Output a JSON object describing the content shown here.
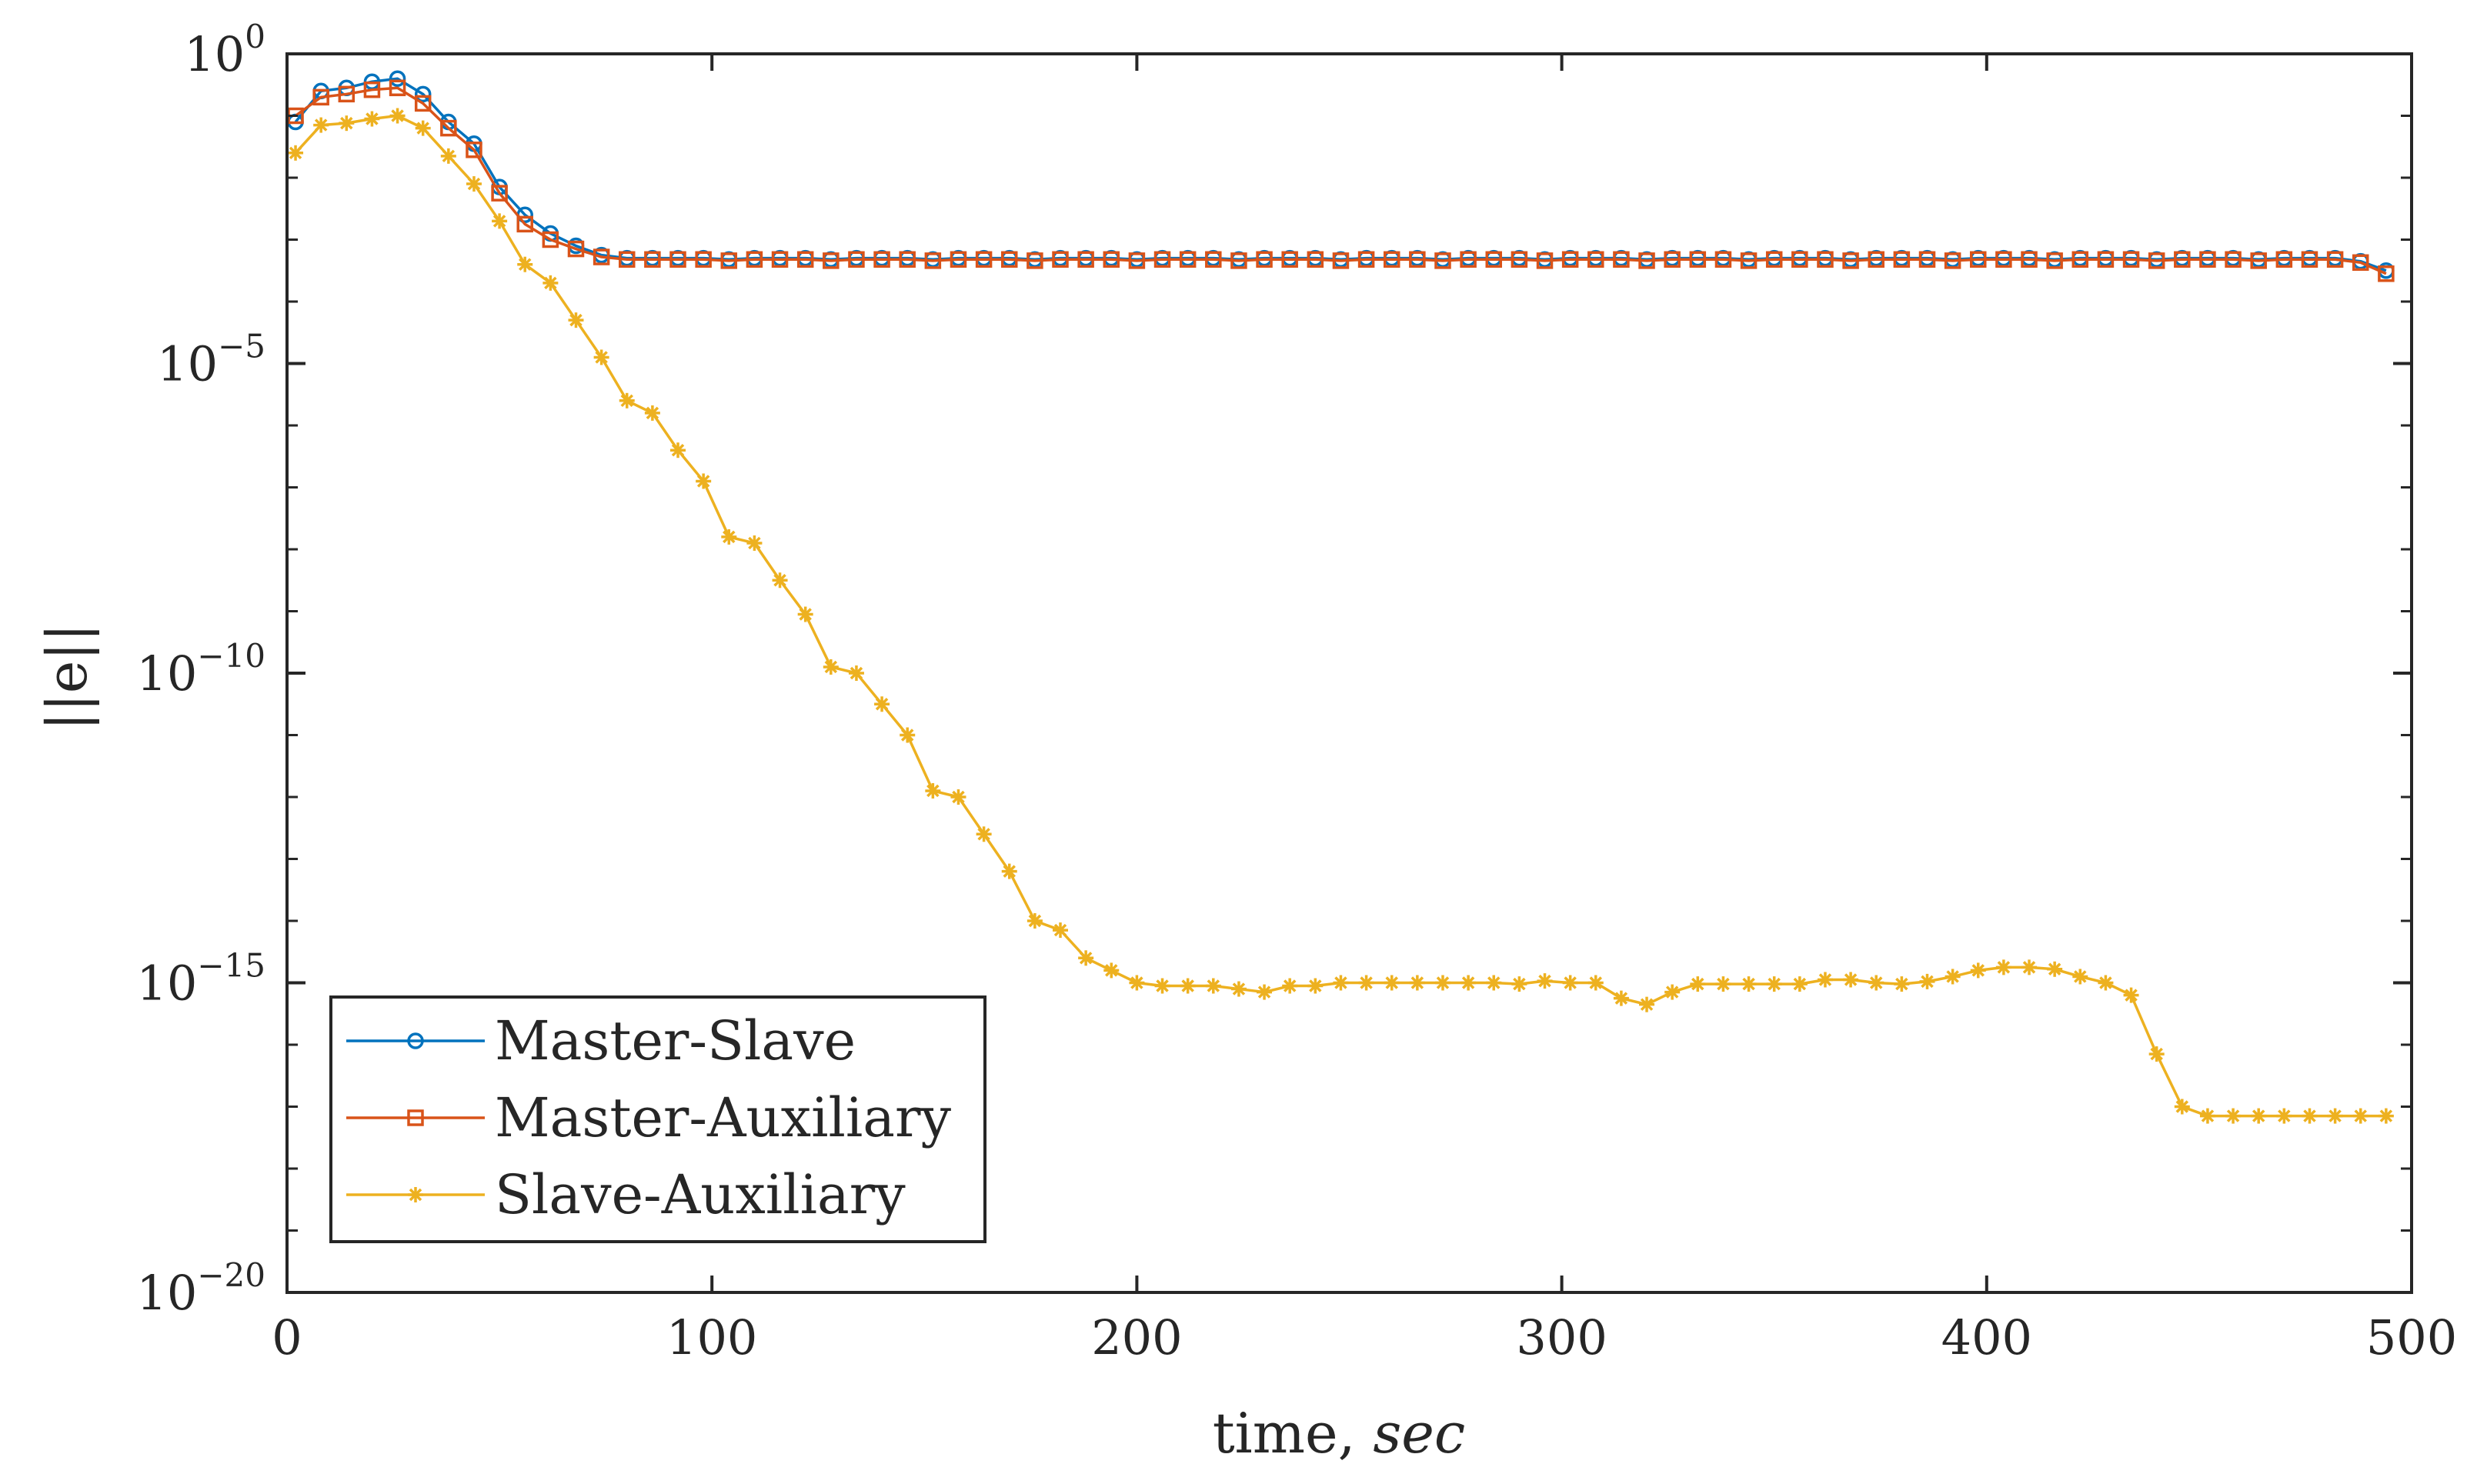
{
  "chart_data": {
    "type": "line",
    "y_scale": "log",
    "title": "",
    "xlabel": "time, ",
    "xlabel_italic": "sec",
    "ylabel": "||e||",
    "xlim": [
      0,
      500
    ],
    "ylim_exponents": [
      -20,
      0
    ],
    "x_ticks": [
      {
        "value": 0,
        "label": "0"
      },
      {
        "value": 100,
        "label": "100"
      },
      {
        "value": 200,
        "label": "200"
      },
      {
        "value": 300,
        "label": "300"
      },
      {
        "value": 400,
        "label": "400"
      },
      {
        "value": 500,
        "label": "500"
      }
    ],
    "y_ticks": [
      {
        "exp": 0,
        "base": "10",
        "sup": "0"
      },
      {
        "exp": -5,
        "base": "10",
        "sup": "−5"
      },
      {
        "exp": -10,
        "base": "10",
        "sup": "−10"
      },
      {
        "exp": -15,
        "base": "10",
        "sup": "−15"
      },
      {
        "exp": -20,
        "base": "10",
        "sup": "−20"
      }
    ],
    "legend_position": "bottom-left",
    "series": [
      {
        "name": "Master-Slave",
        "color": "#0072BD",
        "marker": "circle",
        "x": [
          2,
          8,
          14,
          20,
          26,
          32,
          38,
          44,
          50,
          56,
          62,
          68,
          74,
          80,
          86,
          92,
          98,
          104,
          110,
          116,
          122,
          128,
          134,
          140,
          146,
          152,
          158,
          164,
          170,
          176,
          182,
          188,
          194,
          200,
          206,
          212,
          218,
          224,
          230,
          236,
          242,
          248,
          254,
          260,
          266,
          272,
          278,
          284,
          290,
          296,
          302,
          308,
          314,
          320,
          326,
          332,
          338,
          344,
          350,
          356,
          362,
          368,
          374,
          380,
          386,
          392,
          398,
          404,
          410,
          416,
          422,
          428,
          434,
          440,
          446,
          452,
          458,
          464,
          470,
          476,
          482,
          488,
          494
        ],
        "y_log10": [
          -1.1,
          -0.6,
          -0.55,
          -0.45,
          -0.4,
          -0.65,
          -1.1,
          -1.45,
          -2.15,
          -2.6,
          -2.9,
          -3.1,
          -3.25,
          -3.3,
          -3.3,
          -3.3,
          -3.3,
          -3.32,
          -3.3,
          -3.3,
          -3.3,
          -3.32,
          -3.3,
          -3.3,
          -3.3,
          -3.32,
          -3.3,
          -3.3,
          -3.3,
          -3.32,
          -3.3,
          -3.3,
          -3.3,
          -3.32,
          -3.3,
          -3.3,
          -3.3,
          -3.32,
          -3.3,
          -3.3,
          -3.3,
          -3.32,
          -3.3,
          -3.3,
          -3.3,
          -3.32,
          -3.3,
          -3.3,
          -3.3,
          -3.32,
          -3.3,
          -3.3,
          -3.3,
          -3.32,
          -3.3,
          -3.3,
          -3.3,
          -3.32,
          -3.3,
          -3.3,
          -3.3,
          -3.32,
          -3.3,
          -3.3,
          -3.3,
          -3.32,
          -3.3,
          -3.3,
          -3.3,
          -3.32,
          -3.3,
          -3.3,
          -3.3,
          -3.32,
          -3.3,
          -3.3,
          -3.3,
          -3.32,
          -3.3,
          -3.3,
          -3.3,
          -3.35,
          -3.5
        ]
      },
      {
        "name": "Master-Auxiliary",
        "color": "#D95319",
        "marker": "square",
        "x": [
          2,
          8,
          14,
          20,
          26,
          32,
          38,
          44,
          50,
          56,
          62,
          68,
          74,
          80,
          86,
          92,
          98,
          104,
          110,
          116,
          122,
          128,
          134,
          140,
          146,
          152,
          158,
          164,
          170,
          176,
          182,
          188,
          194,
          200,
          206,
          212,
          218,
          224,
          230,
          236,
          242,
          248,
          254,
          260,
          266,
          272,
          278,
          284,
          290,
          296,
          302,
          308,
          314,
          320,
          326,
          332,
          338,
          344,
          350,
          356,
          362,
          368,
          374,
          380,
          386,
          392,
          398,
          404,
          410,
          416,
          422,
          428,
          434,
          440,
          446,
          452,
          458,
          464,
          470,
          476,
          482,
          488,
          494
        ],
        "y_log10": [
          -1.0,
          -0.7,
          -0.65,
          -0.58,
          -0.55,
          -0.8,
          -1.2,
          -1.55,
          -2.25,
          -2.75,
          -3.0,
          -3.15,
          -3.28,
          -3.32,
          -3.32,
          -3.32,
          -3.32,
          -3.34,
          -3.32,
          -3.32,
          -3.32,
          -3.34,
          -3.32,
          -3.32,
          -3.32,
          -3.34,
          -3.32,
          -3.32,
          -3.32,
          -3.34,
          -3.32,
          -3.32,
          -3.32,
          -3.34,
          -3.32,
          -3.32,
          -3.32,
          -3.34,
          -3.32,
          -3.32,
          -3.32,
          -3.34,
          -3.32,
          -3.32,
          -3.32,
          -3.34,
          -3.32,
          -3.32,
          -3.32,
          -3.34,
          -3.32,
          -3.32,
          -3.32,
          -3.34,
          -3.32,
          -3.32,
          -3.32,
          -3.34,
          -3.32,
          -3.32,
          -3.32,
          -3.34,
          -3.32,
          -3.32,
          -3.32,
          -3.34,
          -3.32,
          -3.32,
          -3.32,
          -3.34,
          -3.32,
          -3.32,
          -3.32,
          -3.34,
          -3.32,
          -3.32,
          -3.32,
          -3.34,
          -3.32,
          -3.32,
          -3.32,
          -3.37,
          -3.55
        ]
      },
      {
        "name": "Slave-Auxiliary",
        "color": "#EDB120",
        "marker": "asterisk",
        "x": [
          2,
          8,
          14,
          20,
          26,
          32,
          38,
          44,
          50,
          56,
          62,
          68,
          74,
          80,
          86,
          92,
          98,
          104,
          110,
          116,
          122,
          128,
          134,
          140,
          146,
          152,
          158,
          164,
          170,
          176,
          182,
          188,
          194,
          200,
          206,
          212,
          218,
          224,
          230,
          236,
          242,
          248,
          254,
          260,
          266,
          272,
          278,
          284,
          290,
          296,
          302,
          308,
          314,
          320,
          326,
          332,
          338,
          344,
          350,
          356,
          362,
          368,
          374,
          380,
          386,
          392,
          398,
          404,
          410,
          416,
          422,
          428,
          434,
          440,
          446,
          452,
          458,
          464,
          470,
          476,
          482,
          488,
          494
        ],
        "y_log10": [
          -1.6,
          -1.15,
          -1.12,
          -1.05,
          -1.0,
          -1.2,
          -1.65,
          -2.1,
          -2.7,
          -3.4,
          -3.7,
          -4.3,
          -4.9,
          -5.6,
          -5.8,
          -6.4,
          -6.9,
          -7.8,
          -7.9,
          -8.5,
          -9.05,
          -9.9,
          -10.0,
          -10.5,
          -11.0,
          -11.9,
          -12.0,
          -12.6,
          -13.2,
          -14.0,
          -14.15,
          -14.6,
          -14.8,
          -15.0,
          -15.05,
          -15.05,
          -15.05,
          -15.1,
          -15.15,
          -15.05,
          -15.05,
          -15.0,
          -15.0,
          -15.0,
          -15.0,
          -15.0,
          -15.0,
          -15.0,
          -15.02,
          -14.97,
          -15.0,
          -15.0,
          -15.25,
          -15.35,
          -15.15,
          -15.02,
          -15.02,
          -15.02,
          -15.02,
          -15.02,
          -14.95,
          -14.95,
          -15.0,
          -15.02,
          -14.98,
          -14.9,
          -14.8,
          -14.75,
          -14.75,
          -14.78,
          -14.9,
          -15.0,
          -15.2,
          -16.15,
          -17.0,
          -17.15,
          -17.15,
          -17.15,
          -17.15,
          -17.15,
          -17.15,
          -17.15,
          -17.15
        ]
      }
    ]
  }
}
